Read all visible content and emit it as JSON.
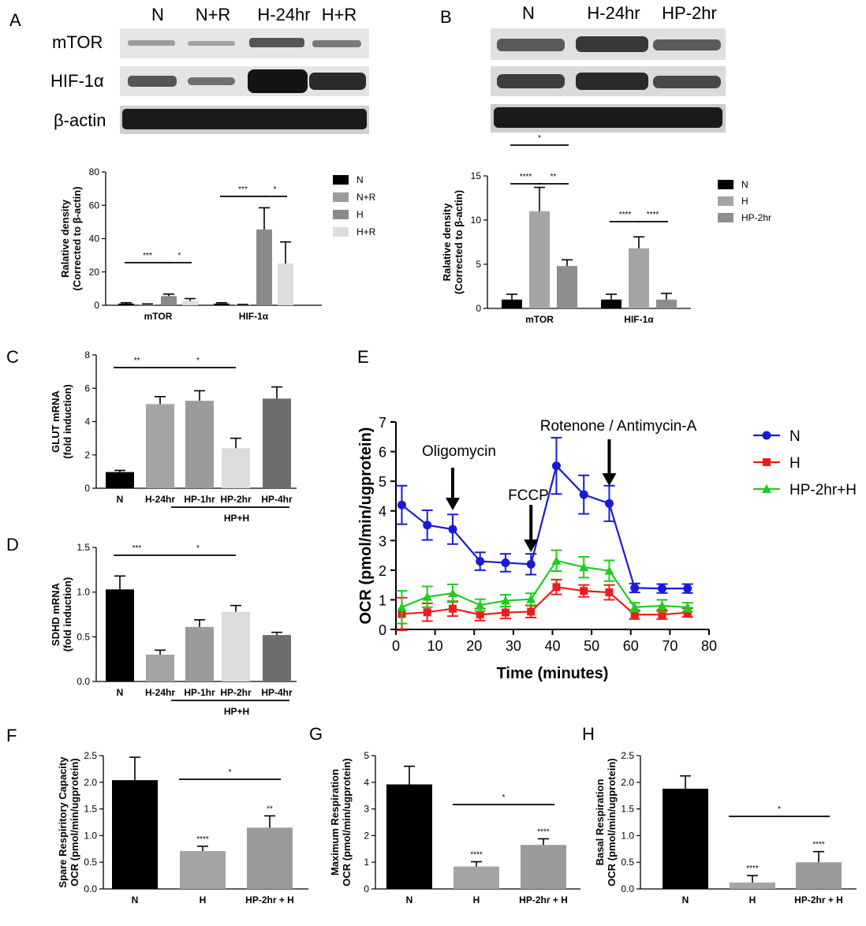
{
  "colors": {
    "black": "#000000",
    "dark_gray": "#6e6e6e",
    "mid_gray": "#9b9b9b",
    "light_gray": "#dcdcdc",
    "blue": "#1a1ad6",
    "red": "#ee1c1c",
    "green": "#1fcc1f"
  },
  "panel_labels": {
    "a": "A",
    "b": "B",
    "c": "C",
    "d": "D",
    "e": "E",
    "f": "F",
    "g": "G",
    "h": "H"
  },
  "blots": {
    "a": {
      "lanes": [
        "N",
        "N+R",
        "H-24hr",
        "H+R"
      ],
      "rows": [
        "mTOR",
        "HIF-1α",
        "β-actin"
      ]
    },
    "b": {
      "lanes": [
        "N",
        "H-24hr",
        "HP-2hr"
      ]
    }
  },
  "chart_data": [
    {
      "id": "A",
      "type": "bar",
      "groups": [
        "mTOR",
        "HIF-1α"
      ],
      "ylabel": "Ralative density (Corrected to β-actin)",
      "ylim": [
        0,
        80
      ],
      "yticks": [
        "0",
        "20",
        "40",
        "60",
        "80"
      ],
      "legend": [
        "N",
        "N+R",
        "H",
        "H+R"
      ],
      "series": [
        {
          "name": "N",
          "values": [
            1,
            1
          ],
          "errors": [
            0.5,
            0.5
          ],
          "color": "#000000"
        },
        {
          "name": "N+R",
          "values": [
            0.5,
            0.3
          ],
          "errors": [
            0.3,
            0.2
          ],
          "color": "#9b9b9b"
        },
        {
          "name": "H",
          "values": [
            5.5,
            45.5
          ],
          "errors": [
            1.2,
            13
          ],
          "color": "#8a8a8a"
        },
        {
          "name": "H+R",
          "values": [
            2.5,
            25
          ],
          "errors": [
            1.5,
            13
          ],
          "color": "#dcdcdc"
        }
      ],
      "significance": [
        {
          "group": 0,
          "from": 0,
          "to": 2,
          "label": "***"
        },
        {
          "group": 0,
          "from": 2,
          "to": 3,
          "label": "*"
        },
        {
          "group": 1,
          "from": 0,
          "to": 2,
          "label": "***"
        },
        {
          "group": 1,
          "from": 2,
          "to": 3,
          "label": "*"
        }
      ]
    },
    {
      "id": "B",
      "type": "bar",
      "groups": [
        "mTOR",
        "HIF-1α"
      ],
      "ylabel": "Ralative density (Corrected to β-actin)",
      "ylim": [
        0,
        15
      ],
      "yticks": [
        "0",
        "5",
        "10",
        "15"
      ],
      "legend": [
        "N",
        "H",
        "HP-2hr"
      ],
      "series": [
        {
          "name": "N",
          "values": [
            1,
            1
          ],
          "errors": [
            0.6,
            0.6
          ],
          "color": "#000000"
        },
        {
          "name": "H",
          "values": [
            11,
            6.8
          ],
          "errors": [
            2.7,
            1.3
          ],
          "color": "#a4a4a4"
        },
        {
          "name": "HP-2hr",
          "values": [
            4.8,
            1
          ],
          "errors": [
            0.7,
            0.7
          ],
          "color": "#8e8e8e"
        }
      ],
      "significance": [
        {
          "group": 0,
          "from": 0,
          "to": 1,
          "label": "****"
        },
        {
          "group": 0,
          "from": 1,
          "to": 2,
          "label": "**"
        },
        {
          "group": 0,
          "from": 0,
          "to": 2,
          "label": "*"
        },
        {
          "group": 1,
          "from": 0,
          "to": 1,
          "label": "****"
        },
        {
          "group": 1,
          "from": 1,
          "to": 2,
          "label": "****"
        }
      ]
    },
    {
      "id": "C",
      "type": "bar",
      "categories": [
        "N",
        "H-24hr",
        "HP-1hr",
        "HP-2hr",
        "HP-4hr"
      ],
      "values": [
        0.97,
        5.05,
        5.25,
        2.4,
        5.38
      ],
      "errors": [
        0.1,
        0.45,
        0.6,
        0.6,
        0.7
      ],
      "colors": [
        "#000000",
        "#a4a4a4",
        "#9b9b9b",
        "#dcdcdc",
        "#6e6e6e"
      ],
      "ylabel": "GLUT mRNA (fold induction)",
      "ylim": [
        0,
        8
      ],
      "yticks": [
        "0",
        "2",
        "4",
        "6",
        "8"
      ],
      "group_label": "HP+H",
      "significance": [
        {
          "from": 0,
          "to": 1,
          "label": "**"
        },
        {
          "from": 1,
          "to": 3,
          "label": "*"
        }
      ]
    },
    {
      "id": "D",
      "type": "bar",
      "categories": [
        "N",
        "H-24hr",
        "HP-1hr",
        "HP-2hr",
        "HP-4hr"
      ],
      "values": [
        1.03,
        0.3,
        0.61,
        0.78,
        0.52
      ],
      "errors": [
        0.15,
        0.05,
        0.08,
        0.07,
        0.03
      ],
      "colors": [
        "#000000",
        "#a4a4a4",
        "#9b9b9b",
        "#dcdcdc",
        "#6e6e6e"
      ],
      "ylabel": "SDHD mRNA (fold induction)",
      "ylim": [
        0,
        1.5
      ],
      "yticks": [
        "0.0",
        "0.5",
        "1.0",
        "1.5"
      ],
      "group_label": "HP+H",
      "significance": [
        {
          "from": 0,
          "to": 1,
          "label": "***"
        },
        {
          "from": 1,
          "to": 3,
          "label": "*"
        }
      ]
    },
    {
      "id": "E",
      "type": "line",
      "xlabel": "Time (minutes)",
      "ylabel": "OCR (pmol/min/ugprotein)",
      "xlim": [
        0,
        80
      ],
      "ylim": [
        0,
        7
      ],
      "xticks": [
        "0",
        "10",
        "20",
        "30",
        "40",
        "50",
        "60",
        "70",
        "80"
      ],
      "yticks": [
        "0",
        "1",
        "2",
        "3",
        "4",
        "5",
        "6",
        "7"
      ],
      "x": [
        1.5,
        8,
        14.5,
        21.5,
        28,
        34.5,
        41,
        48,
        54.5,
        61,
        68,
        74.5
      ],
      "series": [
        {
          "name": "N",
          "marker": "circle",
          "color": "#1a1ad6",
          "y": [
            4.2,
            3.52,
            3.38,
            2.3,
            2.25,
            2.2,
            5.52,
            4.55,
            4.25,
            1.4,
            1.38,
            1.38
          ],
          "err": [
            0.65,
            0.5,
            0.5,
            0.3,
            0.3,
            0.35,
            0.95,
            0.65,
            0.6,
            0.15,
            0.15,
            0.15
          ]
        },
        {
          "name": "H",
          "marker": "square",
          "color": "#ee1c1c",
          "y": [
            0.52,
            0.58,
            0.7,
            0.5,
            0.57,
            0.6,
            1.43,
            1.3,
            1.25,
            0.5,
            0.5,
            0.57
          ],
          "err": [
            0.55,
            0.3,
            0.25,
            0.2,
            0.2,
            0.2,
            0.25,
            0.2,
            0.25,
            0.15,
            0.15,
            0.15
          ]
        },
        {
          "name": "HP-2hr+H",
          "marker": "triangle",
          "color": "#1fcc1f",
          "y": [
            0.75,
            1.1,
            1.22,
            0.82,
            0.97,
            1.02,
            2.32,
            2.1,
            1.98,
            0.75,
            0.8,
            0.75
          ],
          "err": [
            0.55,
            0.35,
            0.3,
            0.2,
            0.2,
            0.2,
            0.35,
            0.35,
            0.35,
            0.15,
            0.2,
            0.15
          ]
        }
      ],
      "annotations": [
        {
          "text": "Oligomycin",
          "x": 14.5
        },
        {
          "text": "FCCP",
          "x": 34.5
        },
        {
          "text": "Rotenone / Antimycin-A",
          "x": 54.5
        }
      ]
    },
    {
      "id": "F",
      "type": "bar",
      "categories": [
        "N",
        "H",
        "HP-2hr + H"
      ],
      "values": [
        2.04,
        0.71,
        1.15
      ],
      "errors": [
        0.43,
        0.09,
        0.22
      ],
      "colors": [
        "#000000",
        "#a4a4a4",
        "#9b9b9b"
      ],
      "ylabel": "Spare Respiritory Capacity OCR (pmol/min/ugprotein)",
      "ylim": [
        0,
        2.5
      ],
      "yticks": [
        "0.0",
        "0.5",
        "1.0",
        "1.5",
        "2.0",
        "2.5"
      ],
      "bar_labels": [
        "",
        "****",
        "**"
      ],
      "significance": [
        {
          "from": 1,
          "to": 2,
          "label": "*"
        }
      ]
    },
    {
      "id": "G",
      "type": "bar",
      "categories": [
        "N",
        "H",
        "HP-2hr + H"
      ],
      "values": [
        3.92,
        0.84,
        1.65
      ],
      "errors": [
        0.68,
        0.18,
        0.23
      ],
      "colors": [
        "#000000",
        "#a4a4a4",
        "#9b9b9b"
      ],
      "ylabel": "Maximum Respiration OCR (pmol/min/ugprotein)",
      "ylim": [
        0,
        5
      ],
      "yticks": [
        "0",
        "1",
        "2",
        "3",
        "4",
        "5"
      ],
      "bar_labels": [
        "",
        "****",
        "****"
      ],
      "significance": [
        {
          "from": 1,
          "to": 2,
          "label": "*"
        }
      ]
    },
    {
      "id": "H",
      "type": "bar",
      "categories": [
        "N",
        "H",
        "HP-2hr + H"
      ],
      "values": [
        1.88,
        0.12,
        0.5
      ],
      "errors": [
        0.24,
        0.13,
        0.2
      ],
      "colors": [
        "#000000",
        "#a4a4a4",
        "#9b9b9b"
      ],
      "ylabel": "Basal Respiration OCR (pmol/min/ugprotein)",
      "ylim": [
        0,
        2.5
      ],
      "yticks": [
        "0.0",
        "0.5",
        "1.0",
        "1.5",
        "2.0",
        "2.5"
      ],
      "bar_labels": [
        "",
        "****",
        "****"
      ],
      "significance": [
        {
          "from": 1,
          "to": 2,
          "label": "*"
        }
      ]
    }
  ]
}
